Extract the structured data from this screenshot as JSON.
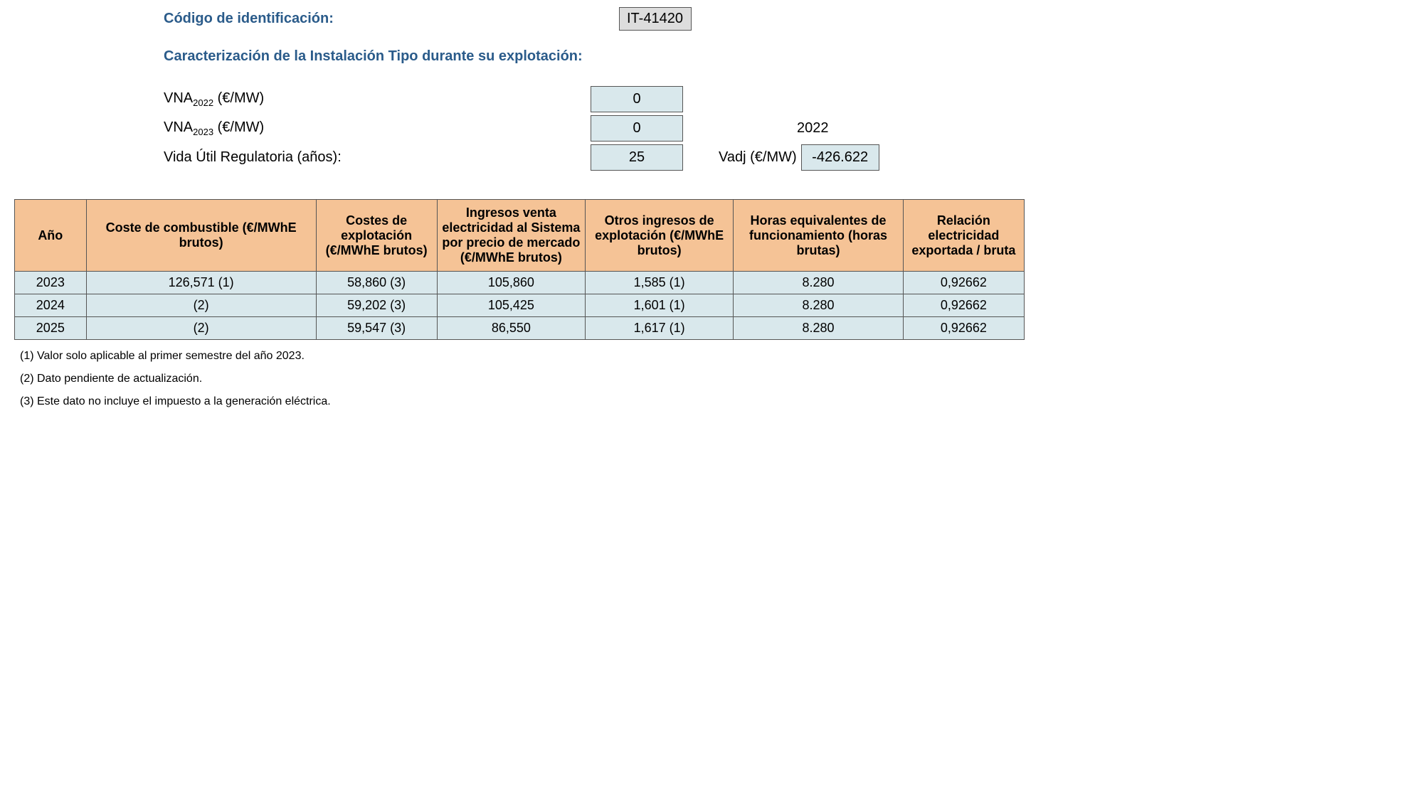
{
  "header": {
    "code_label": "Código de identificación:",
    "code_value": "IT-41420",
    "section_title": "Caracterización de la Instalación Tipo durante su explotación:"
  },
  "params": {
    "vna2022_label_pre": "VNA",
    "vna2022_sub": "2022",
    "vna2022_label_post": " (€/MW)",
    "vna2022_value": "0",
    "vna2023_label_pre": "VNA",
    "vna2023_sub": "2023",
    "vna2023_label_post": " (€/MW)",
    "vna2023_value": "0",
    "year_extra": "2022",
    "vida_label": "Vida Útil Regulatoria (años):",
    "vida_value": "25",
    "vadj_label": "Vadj (€/MW)",
    "vadj_value": "-426.622"
  },
  "table": {
    "columns": [
      "Año",
      "Coste de combustible (€/MWhE brutos)",
      "Costes de explotación (€/MWhE brutos)",
      "Ingresos venta electricidad al Sistema por precio de mercado (€/MWhE brutos)",
      "Otros ingresos de explotación (€/MWhE brutos)",
      "Horas equivalentes de funcionamiento (horas brutas)",
      "Relación electricidad exportada / bruta"
    ],
    "col_widths": [
      "90px",
      "320px",
      "160px",
      "200px",
      "200px",
      "230px",
      "160px"
    ],
    "rows": [
      [
        "2023",
        "126,571 (1)",
        "58,860 (3)",
        "105,860",
        "1,585 (1)",
        "8.280",
        "0,92662"
      ],
      [
        "2024",
        "(2)",
        "59,202 (3)",
        "105,425",
        "1,601 (1)",
        "8.280",
        "0,92662"
      ],
      [
        "2025",
        "(2)",
        "59,547 (3)",
        "86,550",
        "1,617 (1)",
        "8.280",
        "0,92662"
      ]
    ]
  },
  "footnotes": [
    "(1) Valor solo aplicable al primer semestre del año 2023.",
    "(2) Dato pendiente de actualización.",
    "(3) Este dato no incluye el impuesto a la generación eléctrica."
  ],
  "colors": {
    "header_bg": "#f5c396",
    "cell_bg": "#d9e8ec",
    "border": "#555555",
    "title": "#2a5b8a",
    "code_bg": "#dddddd"
  }
}
